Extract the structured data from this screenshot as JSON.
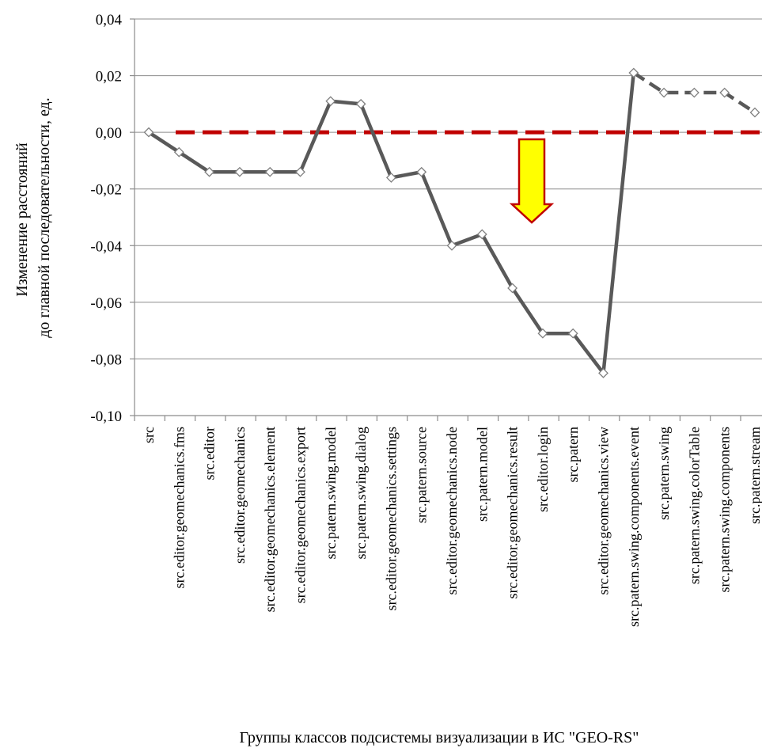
{
  "chart_data": {
    "type": "line",
    "xlabel": "Группы классов подсистемы визуализации в ИС \"GEO-RS\"",
    "ylabel_lines": [
      "Изменение расстояний",
      "до главной последовательности, ед."
    ],
    "ylim": [
      -0.1,
      0.04
    ],
    "yticks": [
      "0,04",
      "0,02",
      "0,00",
      "-0,02",
      "-0,04",
      "-0,06",
      "-0,08",
      "-0,10"
    ],
    "ytick_values": [
      0.04,
      0.02,
      0.0,
      -0.02,
      -0.04,
      -0.06,
      -0.08,
      -0.1
    ],
    "grid": "horizontal",
    "categories": [
      "src",
      "src.editor.geomechanics.fms",
      "src.editor",
      "src.editor.geomechanics",
      "src.editor.geomechanics.element",
      "src.editor.geomechanics.export",
      "src.patern.swing.model",
      "src.patern.swing.dialog",
      "src.editor.geomechanics.settings",
      "src.patern.source",
      "src.editor.geomechanics.node",
      "src.patern.model",
      "src.editor.geomechanics.result",
      "src.editor.login",
      "src.patern",
      "src.editor.geomechanics.view",
      "src.patern.swing.components.event",
      "src.patern.swing",
      "src.patern.swing.colorTable",
      "src.patern.swing.components",
      "src.patern.stream"
    ],
    "series": [
      {
        "values": [
          0.0,
          -0.007,
          -0.014,
          -0.014,
          -0.014,
          -0.014,
          0.011,
          0.01,
          -0.016,
          -0.014,
          -0.04,
          -0.036,
          -0.055,
          -0.071,
          -0.071,
          -0.085,
          0.021,
          0.014,
          0.014,
          0.014,
          0.007
        ],
        "solid_until_index": 16,
        "color": "#595959"
      }
    ],
    "reference_line": {
      "value": 0.0,
      "color": "#c00000",
      "style": "dashed"
    },
    "annotation_arrow": {
      "direction": "down",
      "fill": "#ffff00",
      "stroke": "#c00000"
    }
  }
}
